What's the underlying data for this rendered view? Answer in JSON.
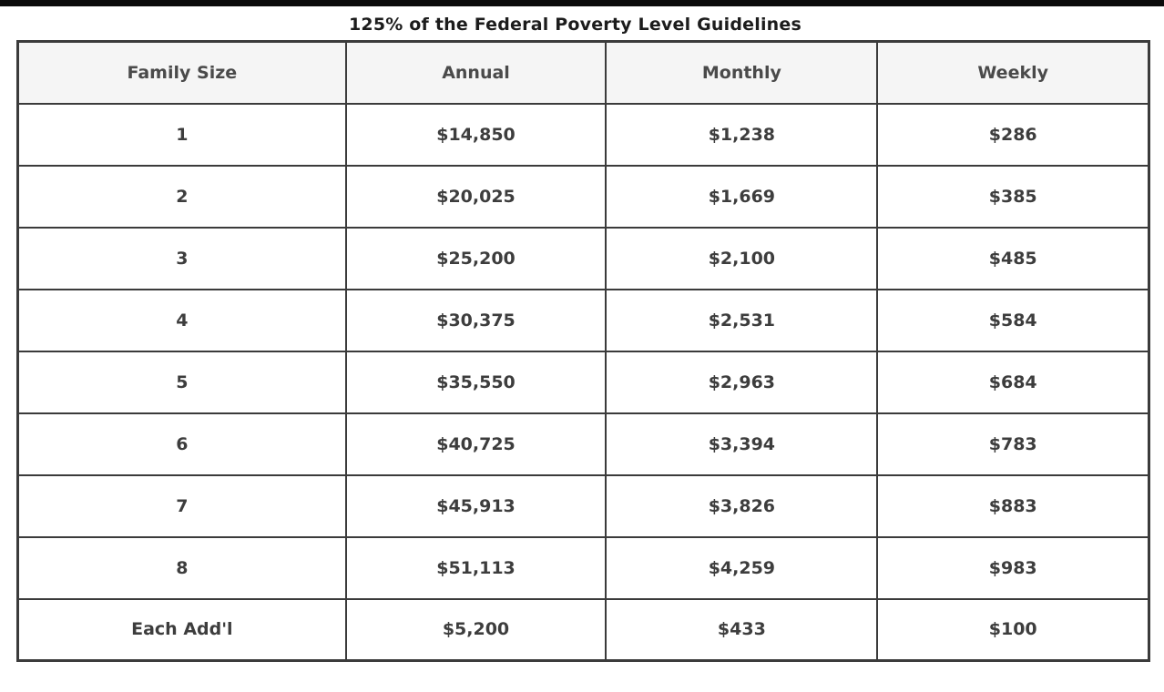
{
  "title": "125% of the Federal Poverty Level Guidelines",
  "colors": {
    "top_bar": "#0b0b0b",
    "header_bg": "#f5f5f5",
    "border": "#3b3b3b",
    "text": "#3d3d3d"
  },
  "chart_data": {
    "type": "table",
    "title": "125% of the Federal Poverty Level Guidelines",
    "columns": [
      "Family Size",
      "Annual",
      "Monthly",
      "Weekly"
    ],
    "rows": [
      [
        "1",
        "$14,850",
        "$1,238",
        "$286"
      ],
      [
        "2",
        "$20,025",
        "$1,669",
        "$385"
      ],
      [
        "3",
        "$25,200",
        "$2,100",
        "$485"
      ],
      [
        "4",
        "$30,375",
        "$2,531",
        "$584"
      ],
      [
        "5",
        "$35,550",
        "$2,963",
        "$684"
      ],
      [
        "6",
        "$40,725",
        "$3,394",
        "$783"
      ],
      [
        "7",
        "$45,913",
        "$3,826",
        "$883"
      ],
      [
        "8",
        "$51,113",
        "$4,259",
        "$983"
      ],
      [
        "Each Add'l",
        "$5,200",
        "$433",
        "$100"
      ]
    ]
  }
}
